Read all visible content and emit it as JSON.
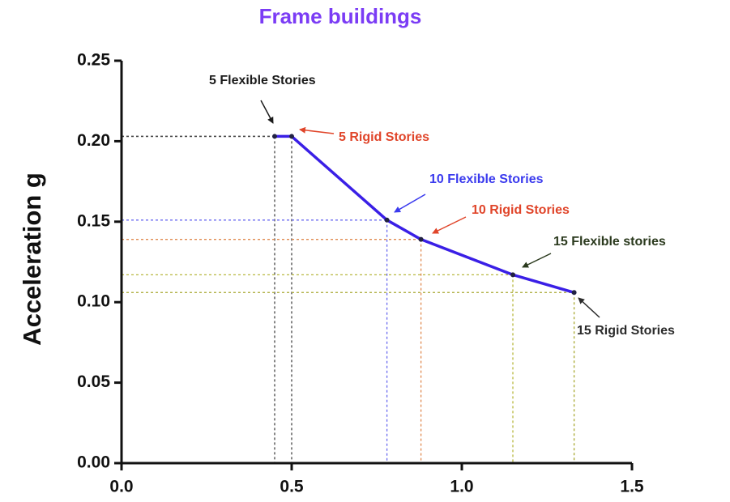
{
  "chart_data": {
    "type": "line",
    "title": "Frame buildings",
    "title_color": "#7b3cf5",
    "y_label": "Acceleration g",
    "x": [
      0.45,
      0.5,
      0.78,
      0.88,
      1.15,
      1.33
    ],
    "values": [
      0.203,
      0.203,
      0.151,
      0.139,
      0.117,
      0.106
    ],
    "color": "#3a1fe6",
    "annotations": [
      {
        "text": "5 Flexible Stories",
        "color": "#1a1a1a"
      },
      {
        "text": "5 Rigid Stories",
        "color": "#e0452a"
      },
      {
        "text": "10 Flexible Stories",
        "color": "#3a3aee"
      },
      {
        "text": "10 Rigid Stories",
        "color": "#e0452a"
      },
      {
        "text": "15 Flexible stories",
        "color": "#2b3a1e"
      },
      {
        "text": "15 Rigid Stories",
        "color": "#2b2b2b"
      }
    ],
    "guide_colors": [
      "#444444",
      "#444444",
      "#6a6af0",
      "#e08a50",
      "#b8b840",
      "#a8a830"
    ],
    "xlim": [
      0,
      1.5
    ],
    "xticks": [
      {
        "value": 0,
        "label": "0.0"
      },
      0.5,
      {
        "value": 1,
        "label": "1.0"
      },
      1.5
    ],
    "ylim": [
      0,
      0.25
    ],
    "yticks": [
      {
        "value": 0,
        "label": "0.00"
      },
      0.05,
      {
        "value": 0.1,
        "label": "0.10"
      },
      0.15,
      {
        "value": 0.2,
        "label": "0.20"
      },
      0.25
    ]
  }
}
